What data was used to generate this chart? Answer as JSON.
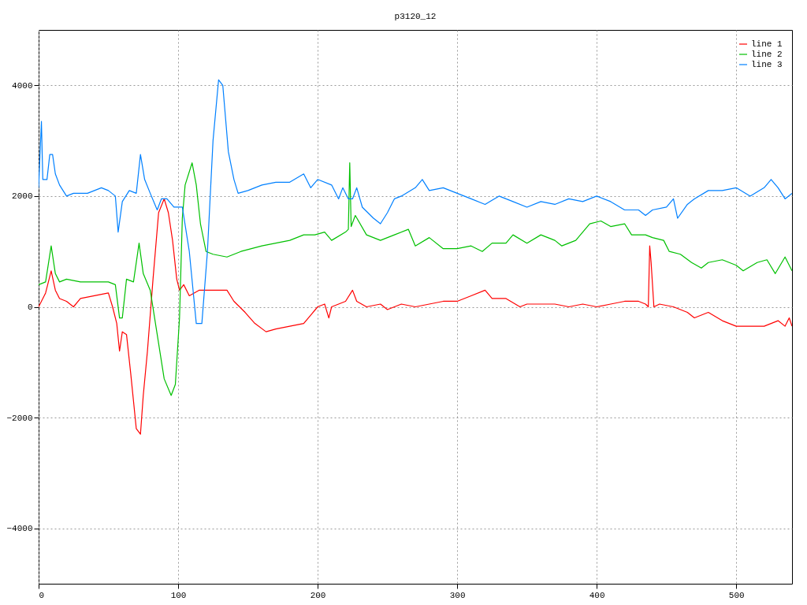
{
  "chart_data": {
    "type": "line",
    "title": "p3120_12",
    "xlim": [
      0,
      540
    ],
    "xticks": [
      0,
      100,
      200,
      300,
      400,
      500
    ],
    "ylim": [
      -5000,
      5000
    ],
    "yticks": [
      -4000,
      -2000,
      0,
      2000,
      4000
    ],
    "grid": true,
    "legend": "top right",
    "marker": "none",
    "line_style": "solid",
    "series": [
      {
        "name": "line 1",
        "color": "#ff0000",
        "x": [
          0,
          5,
          9,
          12,
          15,
          20,
          25,
          30,
          40,
          50,
          53,
          56,
          58,
          60,
          63,
          66,
          70,
          73,
          75,
          78,
          82,
          86,
          90,
          93,
          96,
          99,
          101,
          104,
          108,
          115,
          125,
          135,
          140,
          148,
          155,
          163,
          170,
          180,
          190,
          195,
          200,
          205,
          208,
          210,
          220,
          225,
          228,
          235,
          245,
          250,
          260,
          270,
          280,
          290,
          300,
          310,
          320,
          325,
          335,
          345,
          350,
          360,
          370,
          380,
          390,
          400,
          410,
          420,
          430,
          435,
          437,
          438,
          439,
          441,
          445,
          455,
          465,
          470,
          480,
          490,
          500,
          510,
          520,
          530,
          535,
          538,
          540
        ],
        "values": [
          0,
          250,
          650,
          300,
          150,
          100,
          0,
          150,
          200,
          250,
          0,
          -300,
          -800,
          -450,
          -500,
          -1200,
          -2200,
          -2300,
          -1600,
          -800,
          500,
          1700,
          1950,
          1700,
          1200,
          500,
          300,
          400,
          200,
          300,
          300,
          300,
          100,
          -100,
          -300,
          -450,
          -400,
          -350,
          -300,
          -150,
          0,
          50,
          -200,
          0,
          100,
          300,
          100,
          0,
          50,
          -50,
          50,
          0,
          50,
          100,
          100,
          200,
          300,
          150,
          150,
          0,
          50,
          50,
          50,
          0,
          50,
          0,
          50,
          100,
          100,
          50,
          0,
          1100,
          800,
          0,
          50,
          0,
          -100,
          -200,
          -100,
          -250,
          -350,
          -350,
          -350,
          -250,
          -350,
          -200,
          -350
        ]
      },
      {
        "name": "line 2",
        "color": "#00c000",
        "x": [
          0,
          5,
          9,
          12,
          15,
          20,
          30,
          40,
          50,
          55,
          58,
          60,
          63,
          68,
          72,
          75,
          80,
          85,
          90,
          95,
          98,
          101,
          103,
          105,
          110,
          113,
          116,
          120,
          125,
          135,
          145,
          160,
          170,
          180,
          190,
          198,
          205,
          210,
          220,
          222,
          223,
          224,
          227,
          235,
          245,
          255,
          265,
          270,
          280,
          290,
          300,
          310,
          318,
          325,
          335,
          340,
          350,
          360,
          370,
          375,
          385,
          395,
          403,
          410,
          420,
          425,
          435,
          440,
          448,
          452,
          460,
          468,
          475,
          480,
          490,
          500,
          505,
          515,
          522,
          528,
          535,
          540
        ],
        "values": [
          400,
          450,
          1100,
          600,
          450,
          500,
          450,
          450,
          450,
          400,
          -200,
          -200,
          500,
          450,
          1150,
          600,
          300,
          -500,
          -1300,
          -1600,
          -1400,
          -200,
          1600,
          2200,
          2600,
          2200,
          1500,
          1000,
          950,
          900,
          1000,
          1100,
          1150,
          1200,
          1300,
          1300,
          1350,
          1200,
          1350,
          1400,
          2600,
          1450,
          1650,
          1300,
          1200,
          1300,
          1400,
          1100,
          1250,
          1050,
          1050,
          1100,
          1000,
          1150,
          1150,
          1300,
          1150,
          1300,
          1200,
          1100,
          1200,
          1500,
          1550,
          1450,
          1500,
          1300,
          1300,
          1250,
          1200,
          1000,
          950,
          800,
          700,
          800,
          850,
          750,
          650,
          800,
          850,
          600,
          900,
          650
        ]
      },
      {
        "name": "line 3",
        "color": "#0080ff",
        "x": [
          0,
          2,
          3,
          6,
          8,
          10,
          12,
          15,
          20,
          25,
          35,
          45,
          50,
          55,
          57,
          60,
          65,
          70,
          73,
          76,
          80,
          85,
          88,
          92,
          97,
          103,
          108,
          113,
          117,
          121,
          125,
          129,
          132,
          136,
          140,
          143,
          150,
          160,
          170,
          180,
          190,
          195,
          200,
          210,
          215,
          218,
          222,
          225,
          228,
          232,
          240,
          245,
          250,
          255,
          260,
          270,
          275,
          280,
          290,
          300,
          310,
          320,
          330,
          340,
          350,
          360,
          370,
          380,
          390,
          400,
          410,
          420,
          430,
          435,
          440,
          450,
          455,
          458,
          465,
          470,
          480,
          490,
          500,
          510,
          520,
          525,
          530,
          535,
          540
        ],
        "values": [
          2150,
          3350,
          2300,
          2300,
          2750,
          2750,
          2400,
          2200,
          2000,
          2050,
          2050,
          2150,
          2100,
          2000,
          1350,
          1900,
          2100,
          2050,
          2750,
          2300,
          2050,
          1750,
          1950,
          1950,
          1800,
          1800,
          1000,
          -300,
          -300,
          1000,
          3000,
          4100,
          4000,
          2800,
          2300,
          2050,
          2100,
          2200,
          2250,
          2250,
          2400,
          2150,
          2300,
          2200,
          1950,
          2150,
          1950,
          1950,
          2150,
          1800,
          1600,
          1500,
          1700,
          1950,
          2000,
          2150,
          2300,
          2100,
          2150,
          2050,
          1950,
          1850,
          2000,
          1900,
          1800,
          1900,
          1850,
          1950,
          1900,
          2000,
          1900,
          1750,
          1750,
          1650,
          1750,
          1800,
          1950,
          1600,
          1850,
          1950,
          2100,
          2100,
          2150,
          2000,
          2150,
          2300,
          2150,
          1950,
          2050
        ]
      }
    ]
  }
}
